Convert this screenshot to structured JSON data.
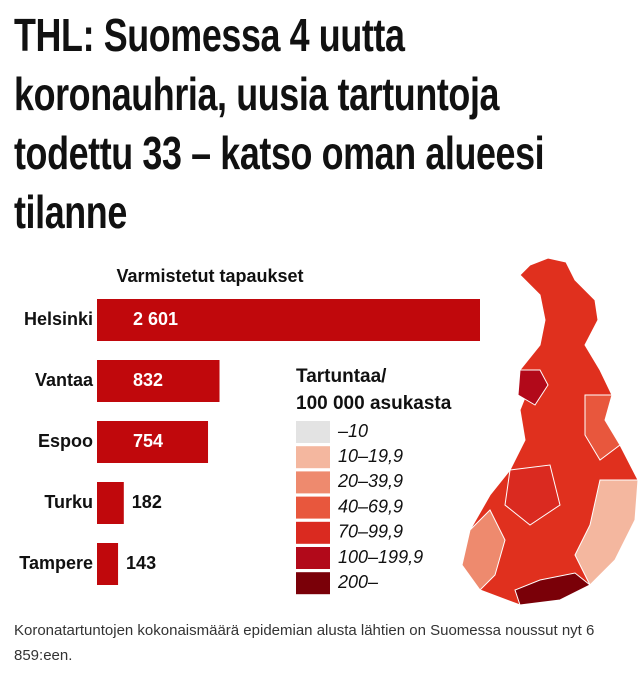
{
  "headline": "THL: Suomessa 4 uutta koronauhria, uusia tartuntoja todettu 33 – katso oman alueesi tilanne",
  "chart_data": {
    "type": "bar",
    "orientation": "horizontal",
    "title": "Varmistetut tapaukset",
    "categories": [
      "Helsinki",
      "Vantaa",
      "Espoo",
      "Turku",
      "Tampere"
    ],
    "values": [
      2601,
      832,
      754,
      182,
      143
    ],
    "value_labels": [
      "2 601",
      "832",
      "754",
      "182",
      "143"
    ],
    "color": "#c0080c"
  },
  "map_legend": {
    "title": [
      "Tartuntaa/",
      "100 000 asukasta"
    ],
    "items": [
      {
        "label": "–10",
        "color": "#e3e3e3"
      },
      {
        "label": "10–19,9",
        "color": "#f4b79f"
      },
      {
        "label": "20–39,9",
        "color": "#ee8a6e"
      },
      {
        "label": "40–69,9",
        "color": "#e8573d"
      },
      {
        "label": "70–99,9",
        "color": "#da2a20"
      },
      {
        "label": "100–199,9",
        "color": "#b2091a"
      },
      {
        "label": "200–",
        "color": "#7a0008"
      }
    ]
  },
  "caption": "Koronatartuntojen kokonaismäärä epidemian alusta lähtien on Suomessa noussut nyt 6 859:een."
}
